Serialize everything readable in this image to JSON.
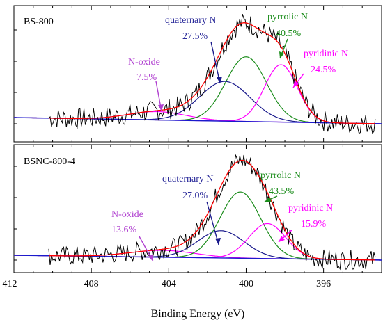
{
  "chart_data": {
    "type": "line",
    "xlabel": "Binding Energy (eV)",
    "x_tick_labels": [
      "412",
      "408",
      "404",
      "400",
      "396"
    ],
    "x_ticks": [
      412,
      408,
      404,
      400,
      396
    ],
    "xlim": [
      412,
      393
    ],
    "x_reversed": true,
    "y_ticks_unlabeled": true,
    "panels": [
      {
        "sample": "BS-800",
        "ylim": [
          0,
          1
        ],
        "peaks": [
          {
            "label": "N-oxide",
            "percent": "7.5%",
            "center": 404.6,
            "height": 0.08,
            "sigma": 1.5,
            "color": "#ff00ff"
          },
          {
            "label": "quaternary N",
            "percent": "27.5%",
            "center": 401.1,
            "height": 0.38,
            "sigma": 1.3,
            "color": "#1a1a8c"
          },
          {
            "label": "pyrrolic N",
            "percent": "40.5%",
            "center": 400.0,
            "height": 0.62,
            "sigma": 1.05,
            "color": "#1a8c1a"
          },
          {
            "label": "pyridinic N",
            "percent": "24.5%",
            "center": 398.2,
            "height": 0.55,
            "sigma": 0.85,
            "color": "#ff00ff"
          }
        ],
        "background": {
          "x": [
            412,
            393
          ],
          "y": [
            0.06,
            0.0
          ],
          "color": "#1a1acc"
        }
      },
      {
        "sample": "BSNC-800-4",
        "ylim": [
          0,
          1
        ],
        "peaks": [
          {
            "label": "N-oxide",
            "percent": "13.6%",
            "center": 404.3,
            "height": 0.07,
            "sigma": 1.7,
            "color": "#ff00ff"
          },
          {
            "label": "quaternary N",
            "percent": "27.0%",
            "center": 401.3,
            "height": 0.28,
            "sigma": 1.2,
            "color": "#1a1a8c"
          },
          {
            "label": "pyrrolic N",
            "percent": "43.5%",
            "center": 400.3,
            "height": 0.68,
            "sigma": 1.05,
            "color": "#1a8c1a"
          },
          {
            "label": "pyridinic N",
            "percent": "15.9%",
            "center": 398.9,
            "height": 0.36,
            "sigma": 0.95,
            "color": "#ff00ff"
          }
        ],
        "background": {
          "x": [
            412,
            393
          ],
          "y": [
            0.05,
            0.0
          ],
          "color": "#1a1acc"
        }
      }
    ],
    "colors": {
      "raw": "#000000",
      "envelope": "#ff0000",
      "axis": "#000000"
    }
  }
}
